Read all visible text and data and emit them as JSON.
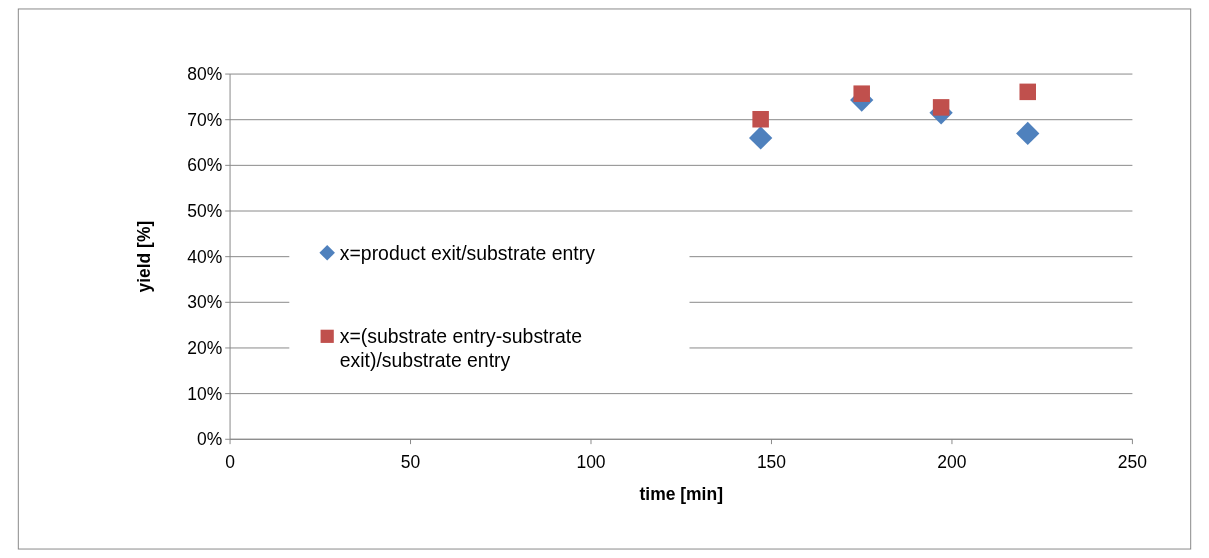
{
  "chart_data": {
    "type": "scatter",
    "xlabel": "time [min]",
    "ylabel": "yield [%]",
    "xlim": [
      0,
      250
    ],
    "xticks": [
      0,
      50,
      100,
      150,
      200,
      250
    ],
    "ylim": [
      0,
      80
    ],
    "yticks": [
      {
        "value": 0,
        "label": "0%"
      },
      {
        "value": 10,
        "label": "10%"
      },
      {
        "value": 20,
        "label": "20%"
      },
      {
        "value": 30,
        "label": "30%"
      },
      {
        "value": 40,
        "label": "40%"
      },
      {
        "value": 50,
        "label": "50%"
      },
      {
        "value": 60,
        "label": "60%"
      },
      {
        "value": 70,
        "label": "70%"
      },
      {
        "value": 80,
        "label": "80%"
      }
    ],
    "grid": "y",
    "legend": "left",
    "series": [
      {
        "name": "x=product exit/substrate entry",
        "color": "#4f81bd",
        "marker": "diamond",
        "x": [
          147,
          175,
          197,
          221
        ],
        "values": [
          66,
          74.3,
          71.5,
          67
        ]
      },
      {
        "name": "x=(substrate entry-substrate exit)/substrate entry",
        "color": "#c0504d",
        "marker": "square",
        "x": [
          147,
          175,
          197,
          221
        ],
        "values": [
          70.1,
          75.7,
          72.7,
          76.1
        ]
      }
    ]
  }
}
